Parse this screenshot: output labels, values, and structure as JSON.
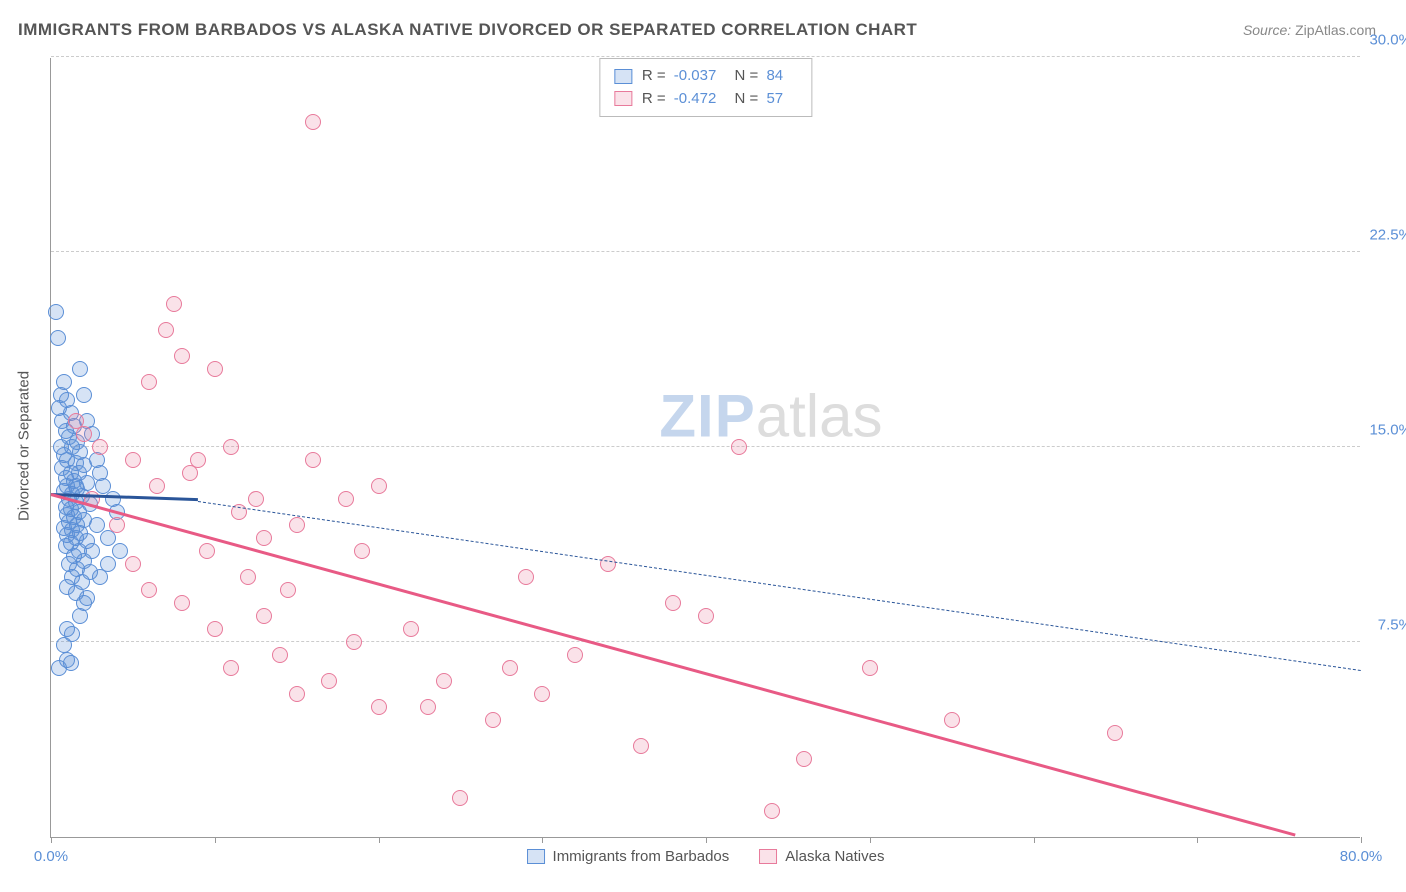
{
  "title": "IMMIGRANTS FROM BARBADOS VS ALASKA NATIVE DIVORCED OR SEPARATED CORRELATION CHART",
  "source_label": "Source:",
  "source_value": "ZipAtlas.com",
  "ylabel": "Divorced or Separated",
  "watermark_a": "ZIP",
  "watermark_b": "atlas",
  "chart": {
    "type": "scatter",
    "xlim": [
      0,
      80
    ],
    "ylim": [
      0,
      30
    ],
    "x_ticks": [
      0,
      10,
      20,
      30,
      40,
      50,
      60,
      70,
      80
    ],
    "x_tick_labels": {
      "0": "0.0%",
      "80": "80.0%"
    },
    "y_ticks": [
      7.5,
      15.0,
      22.5,
      30.0
    ],
    "y_tick_labels": [
      "7.5%",
      "15.0%",
      "22.5%",
      "30.0%"
    ],
    "grid_color": "#cccccc",
    "axis_color": "#999999",
    "background_color": "#ffffff",
    "marker_radius": 8,
    "marker_stroke_width": 1.5,
    "marker_fill_opacity": 0.25
  },
  "series": [
    {
      "id": "barbados",
      "label": "Immigrants from Barbados",
      "color_stroke": "#5b8fd6",
      "color_fill": "rgba(91,143,214,0.25)",
      "R": "-0.037",
      "N": "84",
      "trend": {
        "x1": 0,
        "y1": 13.1,
        "x2": 9,
        "y2": 12.9,
        "style": "solid",
        "width": 3,
        "color": "#2a5599",
        "ext_x1": 9,
        "ext_y1": 12.9,
        "ext_x2": 80,
        "ext_y2": 6.4,
        "ext_style": "dashed",
        "ext_width": 1.5,
        "ext_color": "#2a5599"
      },
      "points": [
        [
          0.3,
          20.2
        ],
        [
          0.4,
          19.2
        ],
        [
          0.8,
          17.5
        ],
        [
          0.6,
          17.0
        ],
        [
          1.0,
          16.8
        ],
        [
          0.5,
          16.5
        ],
        [
          1.2,
          16.3
        ],
        [
          0.7,
          16.0
        ],
        [
          1.4,
          15.8
        ],
        [
          0.9,
          15.6
        ],
        [
          1.1,
          15.4
        ],
        [
          1.6,
          15.2
        ],
        [
          0.6,
          15.0
        ],
        [
          1.3,
          15.0
        ],
        [
          1.8,
          14.8
        ],
        [
          0.8,
          14.7
        ],
        [
          1.0,
          14.5
        ],
        [
          1.5,
          14.4
        ],
        [
          2.0,
          14.3
        ],
        [
          0.7,
          14.2
        ],
        [
          1.2,
          14.0
        ],
        [
          1.7,
          14.0
        ],
        [
          0.9,
          13.8
        ],
        [
          1.4,
          13.7
        ],
        [
          2.2,
          13.6
        ],
        [
          1.0,
          13.5
        ],
        [
          1.6,
          13.4
        ],
        [
          0.8,
          13.3
        ],
        [
          1.3,
          13.2
        ],
        [
          1.9,
          13.1
        ],
        [
          1.1,
          13.0
        ],
        [
          1.5,
          12.9
        ],
        [
          2.4,
          12.8
        ],
        [
          0.9,
          12.7
        ],
        [
          1.2,
          12.6
        ],
        [
          1.7,
          12.5
        ],
        [
          1.0,
          12.4
        ],
        [
          1.4,
          12.3
        ],
        [
          2.0,
          12.2
        ],
        [
          1.1,
          12.1
        ],
        [
          1.6,
          12.0
        ],
        [
          0.8,
          11.9
        ],
        [
          1.3,
          11.8
        ],
        [
          1.8,
          11.7
        ],
        [
          1.0,
          11.6
        ],
        [
          1.5,
          11.5
        ],
        [
          2.2,
          11.4
        ],
        [
          1.2,
          11.3
        ],
        [
          0.9,
          11.2
        ],
        [
          1.7,
          11.0
        ],
        [
          1.4,
          10.8
        ],
        [
          2.0,
          10.6
        ],
        [
          1.1,
          10.5
        ],
        [
          1.6,
          10.3
        ],
        [
          2.4,
          10.2
        ],
        [
          1.3,
          10.0
        ],
        [
          1.9,
          9.8
        ],
        [
          1.0,
          9.6
        ],
        [
          1.5,
          9.4
        ],
        [
          2.2,
          9.2
        ],
        [
          3.0,
          10.0
        ],
        [
          3.5,
          11.5
        ],
        [
          4.0,
          12.5
        ],
        [
          3.2,
          13.5
        ],
        [
          2.8,
          14.5
        ],
        [
          2.5,
          11.0
        ],
        [
          2.0,
          9.0
        ],
        [
          1.8,
          8.5
        ],
        [
          1.0,
          8.0
        ],
        [
          1.3,
          7.8
        ],
        [
          0.8,
          7.4
        ],
        [
          1.0,
          6.8
        ],
        [
          1.2,
          6.7
        ],
        [
          0.5,
          6.5
        ],
        [
          2.5,
          15.5
        ],
        [
          3.0,
          14.0
        ],
        [
          3.8,
          13.0
        ],
        [
          2.2,
          16.0
        ],
        [
          2.0,
          17.0
        ],
        [
          1.8,
          18.0
        ],
        [
          1.5,
          13.5
        ],
        [
          2.8,
          12.0
        ],
        [
          3.5,
          10.5
        ],
        [
          4.2,
          11.0
        ]
      ]
    },
    {
      "id": "alaska",
      "label": "Alaska Natives",
      "color_stroke": "#e87a9b",
      "color_fill": "rgba(232,122,155,0.22)",
      "R": "-0.472",
      "N": "57",
      "trend": {
        "x1": 0,
        "y1": 13.1,
        "x2": 76,
        "y2": 0.0,
        "style": "solid",
        "width": 3,
        "color": "#e85a85"
      },
      "points": [
        [
          1.5,
          16.0
        ],
        [
          2.0,
          15.5
        ],
        [
          3.0,
          15.0
        ],
        [
          6.0,
          17.5
        ],
        [
          7.0,
          19.5
        ],
        [
          7.5,
          20.5
        ],
        [
          8.0,
          18.5
        ],
        [
          9.0,
          14.5
        ],
        [
          10.0,
          18.0
        ],
        [
          11.0,
          15.0
        ],
        [
          5.0,
          14.5
        ],
        [
          6.5,
          13.5
        ],
        [
          8.5,
          14.0
        ],
        [
          11.5,
          12.5
        ],
        [
          12.5,
          13.0
        ],
        [
          13.0,
          11.5
        ],
        [
          15.0,
          12.0
        ],
        [
          16.0,
          14.5
        ],
        [
          18.0,
          13.0
        ],
        [
          19.0,
          11.0
        ],
        [
          20.0,
          13.5
        ],
        [
          5.0,
          10.5
        ],
        [
          6.0,
          9.5
        ],
        [
          8.0,
          9.0
        ],
        [
          10.0,
          8.0
        ],
        [
          11.0,
          6.5
        ],
        [
          13.0,
          8.5
        ],
        [
          14.0,
          7.0
        ],
        [
          15.0,
          5.5
        ],
        [
          17.0,
          6.0
        ],
        [
          20.0,
          5.0
        ],
        [
          22.0,
          8.0
        ],
        [
          23.0,
          5.0
        ],
        [
          25.0,
          1.5
        ],
        [
          27.0,
          4.5
        ],
        [
          29.0,
          10.0
        ],
        [
          30.0,
          5.5
        ],
        [
          32.0,
          7.0
        ],
        [
          34.0,
          10.5
        ],
        [
          36.0,
          3.5
        ],
        [
          38.0,
          9.0
        ],
        [
          40.0,
          8.5
        ],
        [
          42.0,
          15.0
        ],
        [
          44.0,
          1.0
        ],
        [
          46.0,
          3.0
        ],
        [
          50.0,
          6.5
        ],
        [
          55.0,
          4.5
        ],
        [
          65.0,
          4.0
        ],
        [
          16.0,
          27.5
        ],
        [
          2.5,
          13.0
        ],
        [
          4.0,
          12.0
        ],
        [
          9.5,
          11.0
        ],
        [
          12.0,
          10.0
        ],
        [
          14.5,
          9.5
        ],
        [
          18.5,
          7.5
        ],
        [
          24.0,
          6.0
        ],
        [
          28.0,
          6.5
        ]
      ]
    }
  ],
  "legend_top": {
    "R_label": "R =",
    "N_label": "N ="
  }
}
